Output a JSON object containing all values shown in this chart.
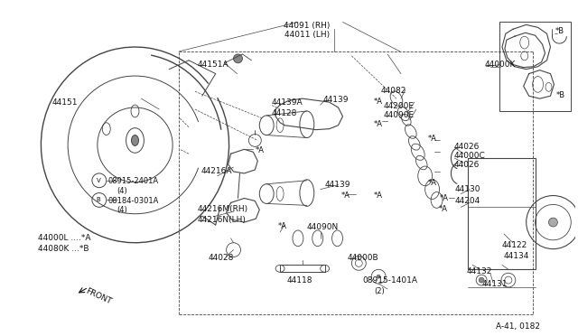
{
  "bg_color": "#ffffff",
  "line_color": "#444444",
  "text_color": "#111111",
  "fig_width": 6.4,
  "fig_height": 3.72,
  "dpi": 100,
  "ref_code": "A-41, 0182",
  "front_label": "FRONT",
  "legend_lines": [
    "44000L ....*A",
    "44080K ...*B"
  ]
}
